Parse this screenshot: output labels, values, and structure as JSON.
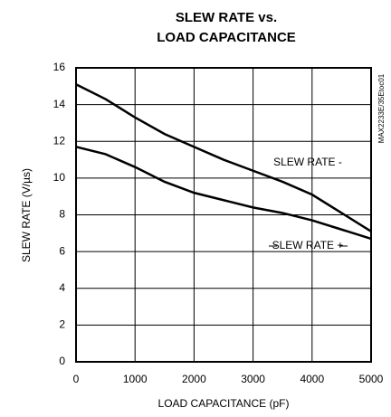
{
  "chart_data": {
    "type": "line",
    "title": [
      "SLEW RATE vs.",
      "LOAD CAPACITANCE"
    ],
    "xlabel": "LOAD CAPACITANCE (pF)",
    "ylabel": "SLEW RATE (V/µs)",
    "note": "MAX2233E/35Etoc01",
    "x": [
      0,
      500,
      1000,
      1500,
      2000,
      2500,
      3000,
      3500,
      4000,
      4500,
      5000
    ],
    "series": [
      {
        "name": "SLEW RATE -",
        "color": "#000000",
        "values": [
          15.1,
          14.3,
          13.3,
          12.4,
          11.7,
          11.0,
          10.4,
          9.8,
          9.1,
          8.1,
          7.1
        ]
      },
      {
        "name": "SLEW RATE +",
        "color": "#000000",
        "values": [
          11.7,
          11.3,
          10.6,
          9.8,
          9.2,
          8.8,
          8.4,
          8.1,
          7.7,
          7.2,
          6.7
        ]
      }
    ],
    "xlim": [
      0,
      5000
    ],
    "xticks": [
      0,
      1000,
      2000,
      3000,
      4000,
      5000
    ],
    "ylim": [
      0,
      16
    ],
    "yticks": [
      0,
      2,
      4,
      6,
      8,
      10,
      12,
      14,
      16
    ],
    "grid": true
  }
}
